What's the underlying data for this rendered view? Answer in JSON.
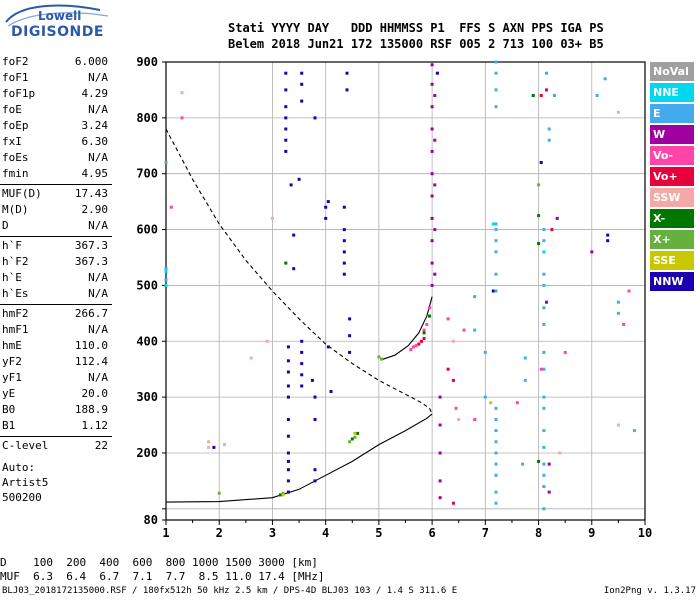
{
  "logo": {
    "line1": "Lowell",
    "line2": "DIGISONDE"
  },
  "header": {
    "line1": "Stati YYYY DAY   DDD HHMMSS P1  FFS S AXN PPS IGA PS",
    "line2": "Belem 2018 Jun21 172 135000 RSF 005 2 713 100 03+ B5"
  },
  "params_group1": [
    {
      "k": "foF2",
      "v": "6.000"
    },
    {
      "k": "foF1",
      "v": "N/A"
    },
    {
      "k": "foF1p",
      "v": "4.29"
    },
    {
      "k": "foE",
      "v": "N/A"
    },
    {
      "k": "foEp",
      "v": "3.24"
    },
    {
      "k": "fxI",
      "v": "6.30"
    },
    {
      "k": "foEs",
      "v": "N/A"
    },
    {
      "k": "fmin",
      "v": "4.95"
    }
  ],
  "params_group2": [
    {
      "k": "MUF(D)",
      "v": "17.43"
    },
    {
      "k": "M(D)",
      "v": "2.90"
    },
    {
      "k": "D",
      "v": "N/A"
    }
  ],
  "params_group3": [
    {
      "k": "h`F",
      "v": "367.3"
    },
    {
      "k": "h`F2",
      "v": "367.3"
    },
    {
      "k": "h`E",
      "v": "N/A"
    },
    {
      "k": "h`Es",
      "v": "N/A"
    }
  ],
  "params_group4": [
    {
      "k": "hmF2",
      "v": "266.7"
    },
    {
      "k": "hmF1",
      "v": "N/A"
    },
    {
      "k": "hmE",
      "v": "110.0"
    },
    {
      "k": "yF2",
      "v": "112.4"
    },
    {
      "k": "yF1",
      "v": "N/A"
    },
    {
      "k": "yE",
      "v": "20.0"
    },
    {
      "k": "B0",
      "v": "188.9"
    },
    {
      "k": "B1",
      "v": "1.12"
    }
  ],
  "params_group5": [
    {
      "k": "C-level",
      "v": "22"
    }
  ],
  "auto": {
    "line1": "Auto:",
    "line2": "Artist5",
    "line3": "500200"
  },
  "legend": [
    {
      "label": "NoVal",
      "color": "#a0a0a0"
    },
    {
      "label": "NNE",
      "color": "#00d8f0"
    },
    {
      "label": "E",
      "color": "#44aaee"
    },
    {
      "label": "W",
      "color": "#a000a0"
    },
    {
      "label": "Vo-",
      "color": "#ff44aa"
    },
    {
      "label": "Vo+",
      "color": "#e8003c"
    },
    {
      "label": "SSW",
      "color": "#f4a8a8"
    },
    {
      "label": "X-",
      "color": "#007800"
    },
    {
      "label": "X+",
      "color": "#66b040"
    },
    {
      "label": "SSE",
      "color": "#c8c800"
    },
    {
      "label": "NNW",
      "color": "#1a00b0"
    }
  ],
  "bottom": {
    "line1": "D    100  200  400  600  800 1000 1500 3000 [km]",
    "line2": "MUF  6.3  6.4  6.7  7.1  7.7  8.5 11.0 17.4 [MHz]"
  },
  "footer": {
    "left": "BLJ03_2018172135000.RSF / 180fx512h 50 kHz 2.5 km / DPS-4D BLJ03 103 / 1.4 S 311.6 E",
    "right": "Ion2Png v. 1.3.17"
  },
  "chart_data": {
    "type": "scatter",
    "xlim": [
      1,
      10
    ],
    "ylim": [
      80,
      900
    ],
    "x_ticks": [
      1,
      2,
      3,
      4,
      5,
      6,
      7,
      8,
      9,
      10
    ],
    "y_ticks": [
      80,
      100,
      200,
      300,
      400,
      500,
      600,
      700,
      800,
      900
    ],
    "y_tick_labels": [
      "80",
      "",
      "200",
      "300",
      "400",
      "500",
      "600",
      "700",
      "800",
      "900"
    ],
    "grid": true,
    "curves": [
      {
        "name": "virtual-height-profile",
        "style": "dashed",
        "x": [
          1.0,
          1.5,
          2.0,
          2.5,
          3.0,
          3.5,
          4.0,
          4.5,
          5.0,
          5.5,
          5.8,
          5.95,
          6.0
        ],
        "y": [
          780,
          690,
          610,
          545,
          490,
          440,
          395,
          360,
          330,
          305,
          290,
          280,
          270
        ]
      },
      {
        "name": "true-height-profile",
        "style": "solid",
        "x": [
          1.0,
          2.0,
          3.0,
          3.5,
          4.0,
          4.5,
          5.0,
          5.5,
          5.9,
          6.0
        ],
        "y": [
          112,
          113,
          120,
          135,
          160,
          185,
          215,
          240,
          262,
          270
        ]
      },
      {
        "name": "F2-trace",
        "style": "solid",
        "x": [
          5.05,
          5.3,
          5.55,
          5.75,
          5.9,
          6.0
        ],
        "y": [
          367,
          375,
          392,
          415,
          445,
          480
        ]
      }
    ],
    "series": [
      {
        "name": "NNW",
        "color": "#1a00b0",
        "points": [
          [
            3.3,
            230
          ],
          [
            3.3,
            260
          ],
          [
            3.3,
            300
          ],
          [
            3.3,
            320
          ],
          [
            3.3,
            345
          ],
          [
            3.3,
            365
          ],
          [
            3.3,
            390
          ],
          [
            3.3,
            130
          ],
          [
            3.3,
            150
          ],
          [
            3.3,
            170
          ],
          [
            3.3,
            185
          ],
          [
            3.3,
            200
          ],
          [
            3.55,
            320
          ],
          [
            3.55,
            340
          ],
          [
            3.55,
            360
          ],
          [
            3.55,
            380
          ],
          [
            3.55,
            400
          ],
          [
            3.55,
            860
          ],
          [
            3.55,
            880
          ],
          [
            3.55,
            830
          ],
          [
            3.25,
            850
          ],
          [
            3.25,
            800
          ],
          [
            3.25,
            780
          ],
          [
            3.25,
            760
          ],
          [
            3.25,
            740
          ],
          [
            3.25,
            820
          ],
          [
            3.25,
            880
          ],
          [
            3.35,
            680
          ],
          [
            3.5,
            690
          ],
          [
            3.4,
            590
          ],
          [
            3.4,
            530
          ],
          [
            4.35,
            520
          ],
          [
            4.35,
            540
          ],
          [
            4.35,
            560
          ],
          [
            4.35,
            580
          ],
          [
            4.35,
            600
          ],
          [
            4.35,
            640
          ],
          [
            4.4,
            850
          ],
          [
            4.4,
            880
          ],
          [
            4.45,
            440
          ],
          [
            4.45,
            410
          ],
          [
            4.45,
            380
          ],
          [
            3.8,
            800
          ],
          [
            3.75,
            330
          ],
          [
            3.8,
            300
          ],
          [
            3.8,
            260
          ],
          [
            3.8,
            170
          ],
          [
            3.8,
            150
          ],
          [
            4.0,
            640
          ],
          [
            4.0,
            620
          ],
          [
            4.05,
            390
          ],
          [
            4.05,
            650
          ],
          [
            4.1,
            310
          ],
          [
            6.1,
            880
          ],
          [
            7.15,
            490
          ],
          [
            8.05,
            720
          ],
          [
            9.3,
            590
          ],
          [
            9.3,
            580
          ],
          [
            1.9,
            210
          ]
        ]
      },
      {
        "name": "W",
        "color": "#a000a0",
        "points": [
          [
            6.0,
            500
          ],
          [
            6.0,
            540
          ],
          [
            6.0,
            580
          ],
          [
            6.0,
            620
          ],
          [
            6.0,
            660
          ],
          [
            6.0,
            700
          ],
          [
            6.0,
            740
          ],
          [
            6.0,
            780
          ],
          [
            6.0,
            820
          ],
          [
            6.0,
            860
          ],
          [
            6.0,
            895
          ],
          [
            6.05,
            520
          ],
          [
            6.05,
            600
          ],
          [
            6.05,
            680
          ],
          [
            6.05,
            760
          ],
          [
            6.05,
            840
          ],
          [
            6.15,
            300
          ],
          [
            6.15,
            250
          ],
          [
            6.15,
            200
          ],
          [
            6.15,
            150
          ],
          [
            6.15,
            120
          ],
          [
            8.35,
            620
          ],
          [
            8.2,
            180
          ],
          [
            8.2,
            130
          ],
          [
            8.15,
            470
          ],
          [
            9.0,
            560
          ]
        ]
      },
      {
        "name": "E",
        "color": "#44aaee",
        "points": [
          [
            7.2,
            600
          ],
          [
            7.2,
            610
          ],
          [
            7.2,
            580
          ],
          [
            7.2,
            560
          ],
          [
            7.2,
            520
          ],
          [
            7.2,
            490
          ],
          [
            7.2,
            280
          ],
          [
            7.2,
            260
          ],
          [
            7.2,
            240
          ],
          [
            7.2,
            220
          ],
          [
            7.2,
            200
          ],
          [
            7.2,
            180
          ],
          [
            7.2,
            160
          ],
          [
            7.2,
            130
          ],
          [
            7.2,
            110
          ],
          [
            7.2,
            820
          ],
          [
            7.2,
            850
          ],
          [
            7.2,
            880
          ],
          [
            7.2,
            900
          ],
          [
            8.1,
            600
          ],
          [
            8.1,
            580
          ],
          [
            8.1,
            520
          ],
          [
            8.1,
            500
          ],
          [
            8.1,
            460
          ],
          [
            8.1,
            430
          ],
          [
            8.1,
            380
          ],
          [
            8.1,
            350
          ],
          [
            8.1,
            300
          ],
          [
            8.1,
            280
          ],
          [
            8.1,
            240
          ],
          [
            8.1,
            210
          ],
          [
            8.1,
            180
          ],
          [
            8.1,
            160
          ],
          [
            8.1,
            140
          ],
          [
            8.1,
            100
          ],
          [
            8.15,
            880
          ],
          [
            8.2,
            780
          ],
          [
            8.2,
            760
          ],
          [
            8.3,
            840
          ],
          [
            7.0,
            380
          ],
          [
            7.0,
            300
          ],
          [
            7.75,
            370
          ],
          [
            7.75,
            330
          ],
          [
            7.7,
            180
          ],
          [
            6.8,
            480
          ],
          [
            6.8,
            420
          ],
          [
            9.25,
            870
          ],
          [
            9.1,
            840
          ],
          [
            9.5,
            450
          ],
          [
            9.5,
            470
          ],
          [
            9.8,
            240
          ],
          [
            1.0,
            530
          ],
          [
            1.0,
            510
          ],
          [
            1.0,
            720
          ]
        ]
      },
      {
        "name": "Vo+",
        "color": "#e8003c",
        "points": [
          [
            5.75,
            395
          ],
          [
            5.8,
            400
          ],
          [
            5.85,
            405
          ],
          [
            6.3,
            350
          ],
          [
            6.4,
            330
          ],
          [
            6.4,
            110
          ],
          [
            8.15,
            850
          ],
          [
            8.25,
            600
          ],
          [
            8.05,
            840
          ]
        ]
      },
      {
        "name": "Vo-",
        "color": "#ff44aa",
        "points": [
          [
            5.6,
            385
          ],
          [
            5.65,
            390
          ],
          [
            5.7,
            392
          ],
          [
            5.85,
            420
          ],
          [
            5.9,
            430
          ],
          [
            5.95,
            460
          ],
          [
            6.3,
            440
          ],
          [
            6.45,
            280
          ],
          [
            6.6,
            420
          ],
          [
            6.8,
            260
          ],
          [
            7.6,
            290
          ],
          [
            8.5,
            380
          ],
          [
            9.6,
            430
          ],
          [
            9.7,
            490
          ],
          [
            1.3,
            800
          ],
          [
            1.1,
            640
          ],
          [
            8.05,
            350
          ]
        ]
      },
      {
        "name": "SSW",
        "color": "#f4a8a8",
        "points": [
          [
            1.3,
            845
          ],
          [
            1.8,
            220
          ],
          [
            1.8,
            210
          ],
          [
            2.6,
            370
          ],
          [
            2.9,
            400
          ],
          [
            3.0,
            620
          ],
          [
            6.4,
            400
          ],
          [
            6.5,
            260
          ],
          [
            8.4,
            200
          ],
          [
            9.5,
            250
          ],
          [
            9.5,
            810
          ],
          [
            2.1,
            215
          ]
        ]
      },
      {
        "name": "X-",
        "color": "#007800",
        "points": [
          [
            5.85,
            415
          ],
          [
            5.95,
            445
          ],
          [
            4.6,
            235
          ],
          [
            4.5,
            225
          ],
          [
            3.15,
            125
          ],
          [
            8.0,
            575
          ],
          [
            8.0,
            625
          ],
          [
            8.0,
            185
          ],
          [
            7.9,
            840
          ],
          [
            3.25,
            540
          ]
        ]
      },
      {
        "name": "X+",
        "color": "#66b040",
        "points": [
          [
            5.05,
            368
          ],
          [
            5.0,
            372
          ],
          [
            4.55,
            228
          ],
          [
            4.45,
            220
          ],
          [
            3.2,
            128
          ],
          [
            2.0,
            128
          ],
          [
            8.0,
            680
          ]
        ]
      },
      {
        "name": "SSE",
        "color": "#c8c800",
        "points": [
          [
            4.55,
            235
          ],
          [
            7.1,
            290
          ],
          [
            3.2,
            125
          ]
        ]
      },
      {
        "name": "NNE",
        "color": "#00d8f0",
        "points": [
          [
            1.0,
            525
          ],
          [
            1.0,
            500
          ],
          [
            7.15,
            610
          ],
          [
            8.1,
            560
          ]
        ]
      }
    ]
  }
}
